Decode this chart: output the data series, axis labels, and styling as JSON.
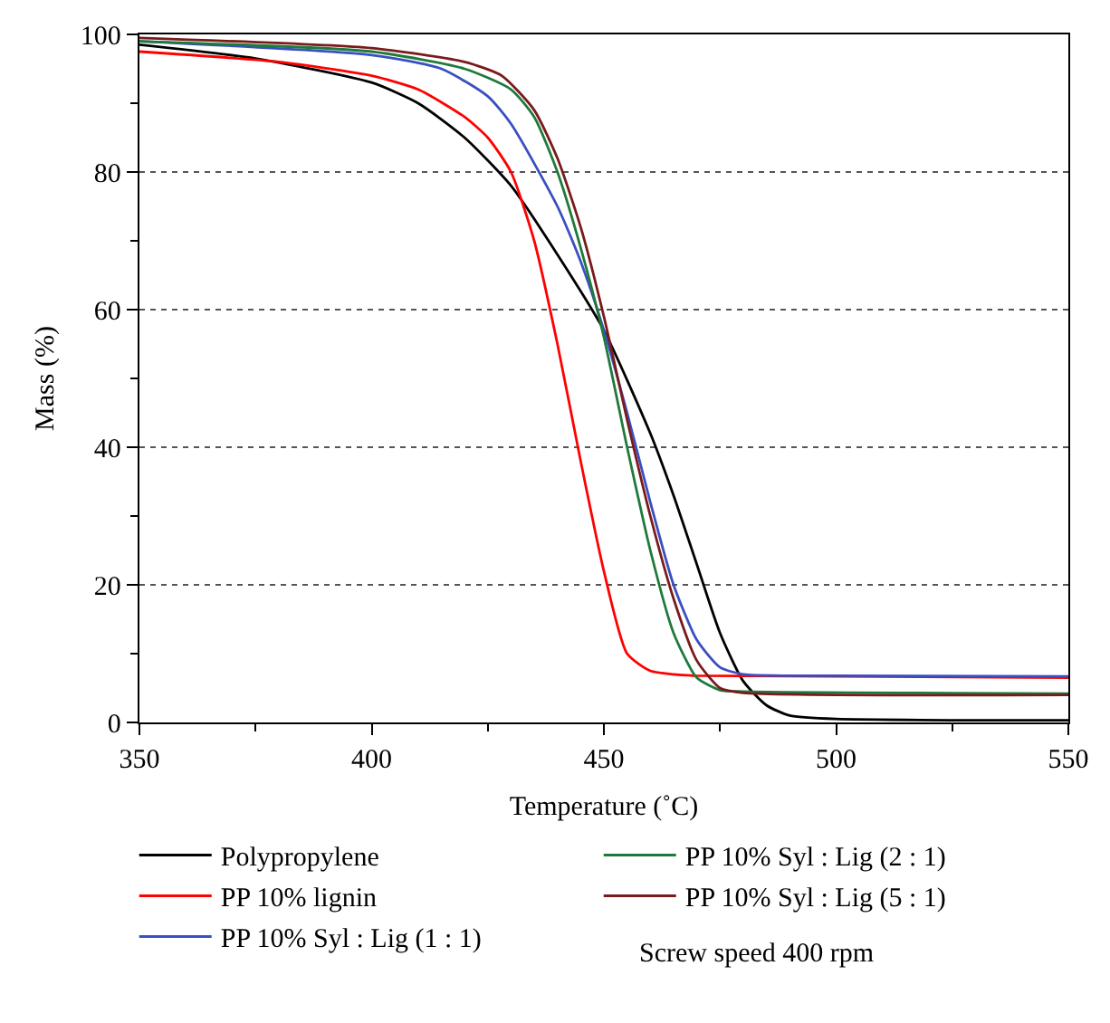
{
  "chart_data": {
    "type": "line",
    "xlabel": "Temperature (˚C)",
    "ylabel": "Mass (%)",
    "xlim": [
      350,
      550
    ],
    "xticks": [
      350,
      400,
      450,
      500,
      550
    ],
    "ylim": [
      0,
      100
    ],
    "yticks": [
      0,
      20,
      40,
      60,
      80,
      100
    ],
    "grid": "y",
    "legend": "bottom",
    "line_style": "solid",
    "marker": "none",
    "annotations": [
      "Screw speed 400 rpm"
    ],
    "series": [
      {
        "name": "Polypropylene",
        "color": "#000000",
        "x": [
          350,
          375,
          400,
          410,
          420,
          430,
          440,
          450,
          460,
          465,
          470,
          475,
          480,
          485,
          490,
          500,
          550
        ],
        "values": [
          98.5,
          96.5,
          93,
          90,
          85,
          78,
          68,
          57,
          42,
          33,
          23,
          13,
          6,
          2.5,
          1,
          0.5,
          0.3
        ]
      },
      {
        "name": "PP 10% lignin",
        "color": "#ff0000",
        "x": [
          350,
          380,
          400,
          410,
          420,
          425,
          430,
          435,
          440,
          445,
          450,
          455,
          460,
          465,
          470,
          550
        ],
        "values": [
          97.5,
          96,
          94,
          92,
          88,
          85,
          80,
          70,
          55,
          38,
          22,
          10,
          7.5,
          7,
          6.8,
          6.5
        ]
      },
      {
        "name": "PP 10% Syl : Lig (1 : 1)",
        "color": "#3a4fc0",
        "x": [
          350,
          400,
          415,
          425,
          430,
          440,
          445,
          450,
          455,
          460,
          465,
          470,
          475,
          480,
          500,
          550
        ],
        "values": [
          99,
          97,
          95,
          91,
          87,
          75,
          67,
          57,
          45,
          32,
          20,
          12,
          8,
          7,
          6.8,
          6.7
        ]
      },
      {
        "name": "PP 10% Syl : Lig (2 : 1)",
        "color": "#1e7a3c",
        "x": [
          350,
          400,
          420,
          430,
          435,
          440,
          445,
          450,
          455,
          460,
          465,
          470,
          475,
          480,
          550
        ],
        "values": [
          99,
          97.5,
          95,
          92,
          88,
          80,
          69,
          56,
          40,
          25,
          13,
          6.5,
          4.7,
          4.5,
          4.2
        ]
      },
      {
        "name": "PP 10% Syl : Lig (5 : 1)",
        "color": "#7a1a1a",
        "x": [
          350,
          400,
          420,
          428,
          435,
          440,
          445,
          450,
          455,
          460,
          465,
          470,
          475,
          480,
          550
        ],
        "values": [
          99.5,
          98,
          96,
          94,
          89,
          82,
          72,
          59,
          44,
          30,
          18,
          9,
          5,
          4.3,
          4
        ]
      }
    ]
  }
}
